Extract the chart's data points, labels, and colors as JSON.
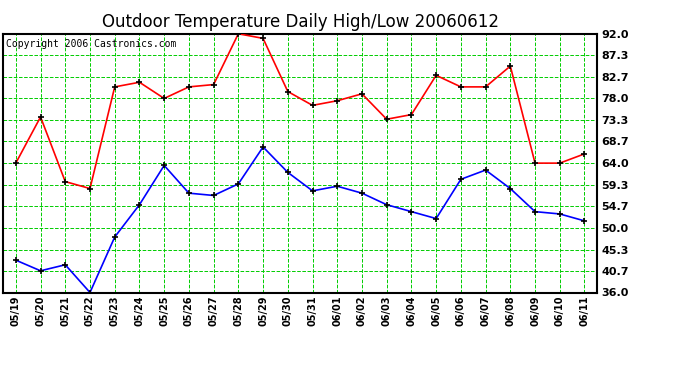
{
  "title": "Outdoor Temperature Daily High/Low 20060612",
  "copyright": "Copyright 2006 Castronics.com",
  "dates": [
    "05/19",
    "05/20",
    "05/21",
    "05/22",
    "05/23",
    "05/24",
    "05/25",
    "05/26",
    "05/27",
    "05/28",
    "05/29",
    "05/30",
    "05/31",
    "06/01",
    "06/02",
    "06/03",
    "06/04",
    "06/05",
    "06/06",
    "06/07",
    "06/08",
    "06/09",
    "06/10",
    "06/11"
  ],
  "high": [
    64.0,
    74.0,
    60.0,
    58.5,
    80.5,
    81.5,
    78.0,
    80.5,
    81.0,
    92.0,
    91.0,
    79.5,
    76.5,
    77.5,
    79.0,
    73.5,
    74.5,
    83.0,
    80.5,
    80.5,
    85.0,
    64.0,
    64.0,
    66.0
  ],
  "low": [
    43.0,
    40.7,
    42.0,
    36.0,
    48.0,
    55.0,
    63.5,
    57.5,
    57.0,
    59.5,
    67.5,
    62.0,
    58.0,
    59.0,
    57.5,
    55.0,
    53.5,
    52.0,
    60.5,
    62.5,
    58.5,
    53.5,
    53.0,
    51.5
  ],
  "high_color": "#ff0000",
  "low_color": "#0000ff",
  "bg_color": "#ffffff",
  "grid_color": "#00cc00",
  "plot_bg_color": "#ffffff",
  "ylim_min": 36.0,
  "ylim_max": 92.0,
  "yticks": [
    36.0,
    40.7,
    45.3,
    50.0,
    54.7,
    59.3,
    64.0,
    68.7,
    73.3,
    78.0,
    82.7,
    87.3,
    92.0
  ],
  "title_fontsize": 12,
  "copyright_fontsize": 7,
  "tick_fontsize": 8,
  "xtick_fontsize": 7
}
